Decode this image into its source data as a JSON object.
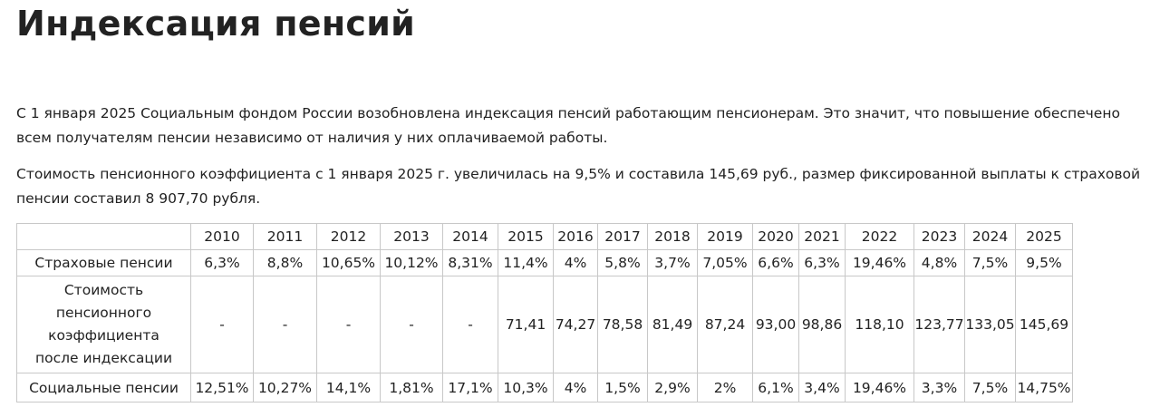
{
  "page_title": "Индексация пенсий",
  "paragraphs": [
    "С 1 января 2025 Социальным фондом России возобновлена индексация пенсий работающим пенсионерам. Это значит, что повышение обеспечено всем получателям пенсии независимо от наличия у них оплачиваемой работы.",
    "Стоимость пенсионного коэффициента с 1 января 2025 г. увеличилась на 9,5% и составила 145,69 руб., размер фиксированной выплаты к страховой пенсии составил 8 907,70 рубля."
  ],
  "table": {
    "years": [
      "2010",
      "2011",
      "2012",
      "2013",
      "2014",
      "2015",
      "2016",
      "2017",
      "2018",
      "2019",
      "2020",
      "2021",
      "2022",
      "2023",
      "2024",
      "2025"
    ],
    "rows": [
      {
        "label": "Страховые пенсии",
        "values": [
          "6,3%",
          "8,8%",
          "10,65%",
          "10,12%",
          "8,31%",
          "11,4%",
          "4%",
          "5,8%",
          "3,7%",
          "7,05%",
          "6,6%",
          "6,3%",
          "19,46%",
          "4,8%",
          "7,5%",
          "9,5%"
        ]
      },
      {
        "label": "Стоимость пенсионного коэффициента после индексации",
        "values": [
          "-",
          "-",
          "-",
          "-",
          "-",
          "71,41",
          "74,27",
          "78,58",
          "81,49",
          "87,24",
          "93,00",
          "98,86",
          "118,10",
          "123,77",
          "133,05",
          "145,69"
        ]
      },
      {
        "label": "Социальные пенсии",
        "values": [
          "12,51%",
          "10,27%",
          "14,1%",
          "1,81%",
          "17,1%",
          "10,3%",
          "4%",
          "1,5%",
          "2,9%",
          "2%",
          "6,1%",
          "3,4%",
          "19,46%",
          "3,3%",
          "7,5%",
          "14,75%"
        ]
      }
    ]
  }
}
